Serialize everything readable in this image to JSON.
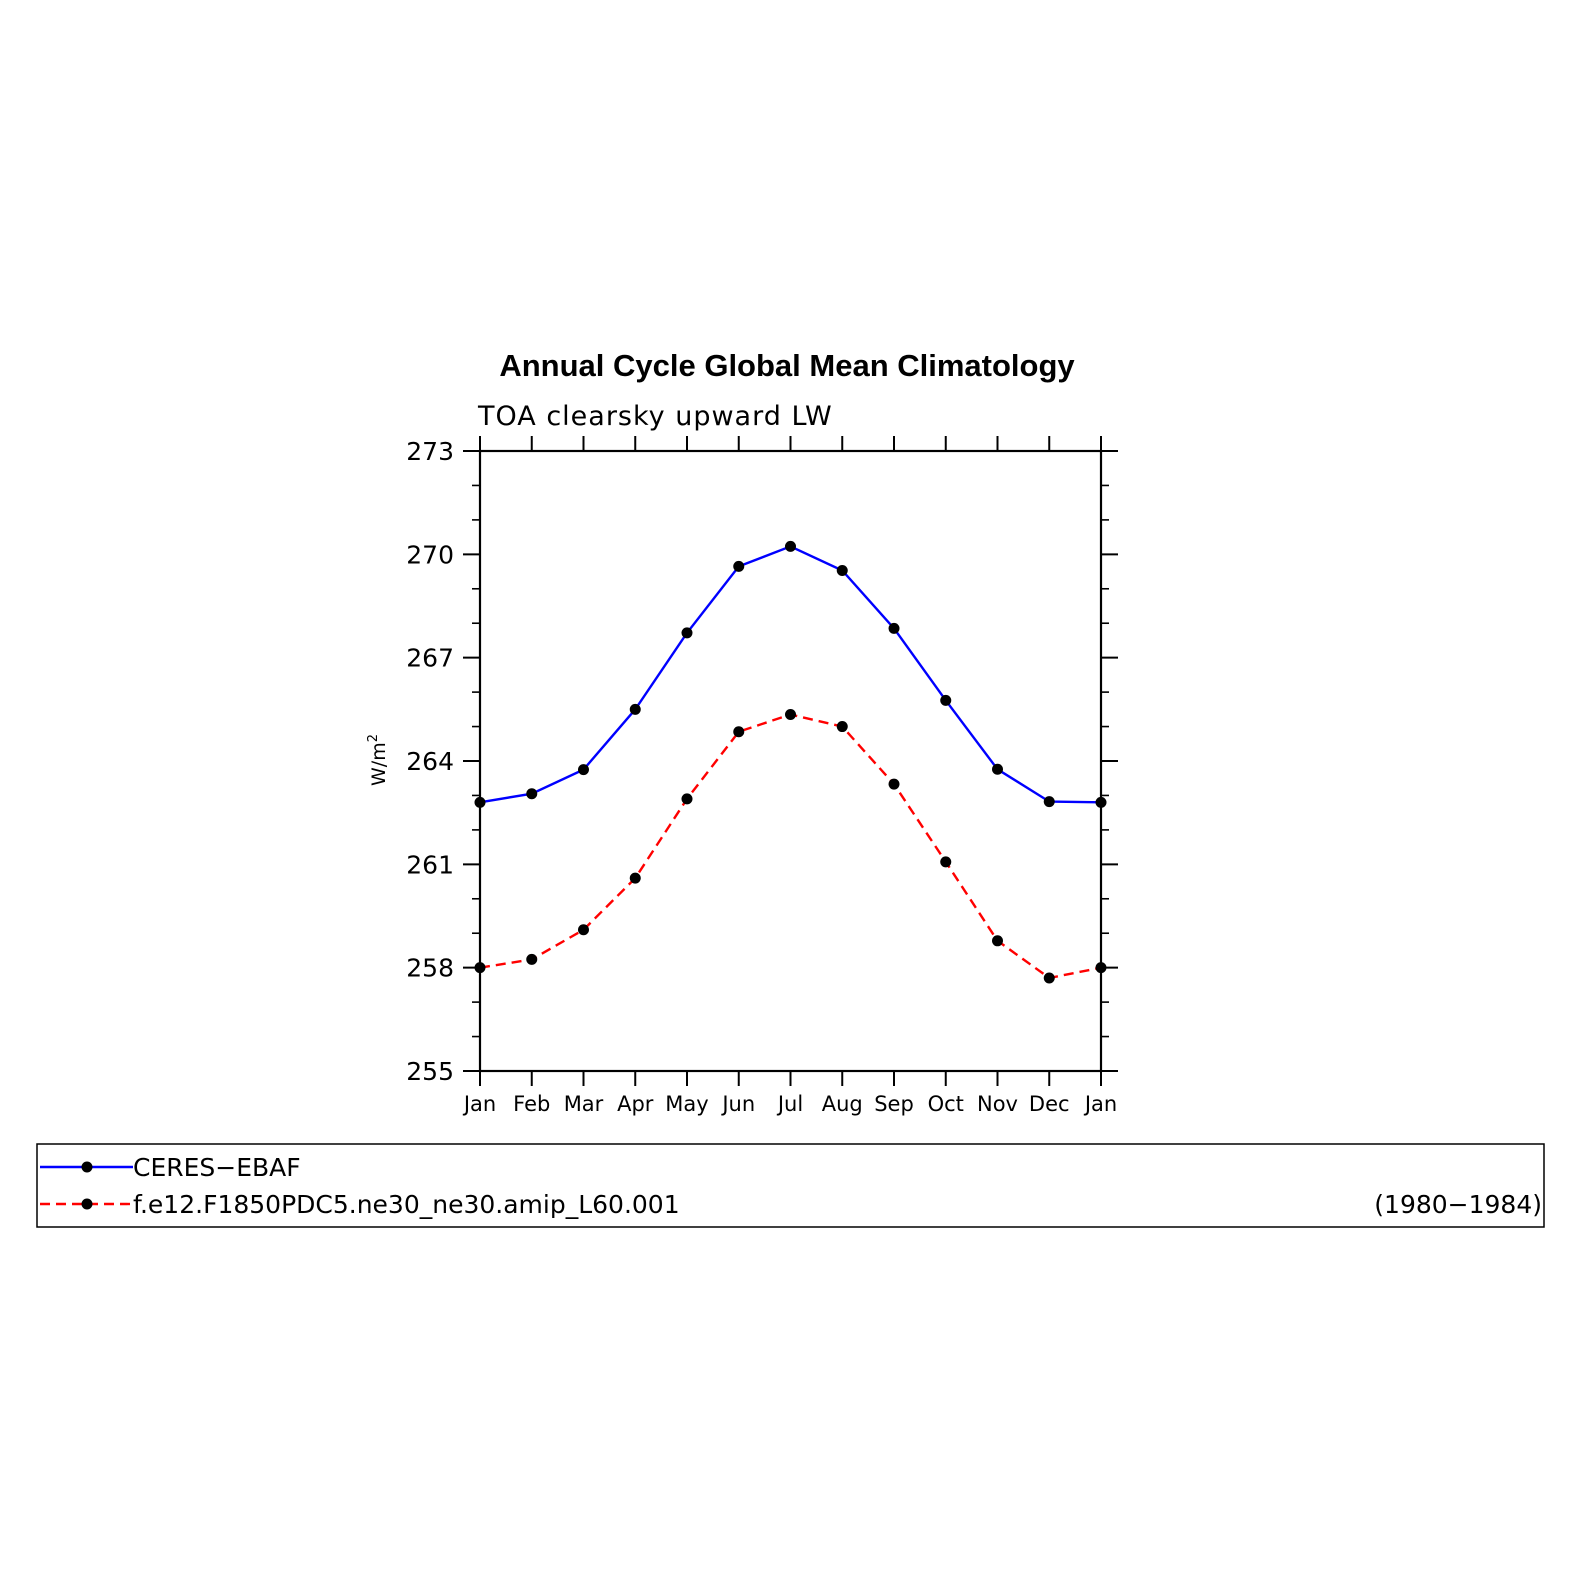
{
  "chart_data": {
    "type": "line",
    "title": "Annual Cycle Global Mean Climatology",
    "subtitle": "TOA clearsky upward LW",
    "ylabel_base": "W/m",
    "ylabel_sup": "2",
    "ylim": [
      255,
      273
    ],
    "yticks": [
      "273",
      "270",
      "267",
      "264",
      "261",
      "258",
      "255"
    ],
    "ytick_values": [
      273,
      270,
      267,
      264,
      261,
      258,
      255
    ],
    "categories": [
      "Jan",
      "Feb",
      "Mar",
      "Apr",
      "May",
      "Jun",
      "Jul",
      "Aug",
      "Sep",
      "Oct",
      "Nov",
      "Dec",
      "Jan"
    ],
    "grid": false,
    "legend_placement": "bottom",
    "series": [
      {
        "name": "CERES−EBAF",
        "color": "#0000ff",
        "dash": "solid",
        "values": [
          262.8,
          263.05,
          263.75,
          265.5,
          267.72,
          269.65,
          270.23,
          269.53,
          267.85,
          265.76,
          263.76,
          262.82,
          262.8
        ]
      },
      {
        "name": "f.e12.F1850PDC5.ne30_ne30.amip_L60.001",
        "color": "#ff0000",
        "dash": "dashed",
        "values": [
          258.0,
          258.24,
          259.1,
          260.6,
          262.9,
          264.85,
          265.35,
          265.0,
          263.33,
          261.07,
          258.78,
          257.7,
          258.0
        ]
      }
    ],
    "legend_note": "(1980−1984)"
  }
}
